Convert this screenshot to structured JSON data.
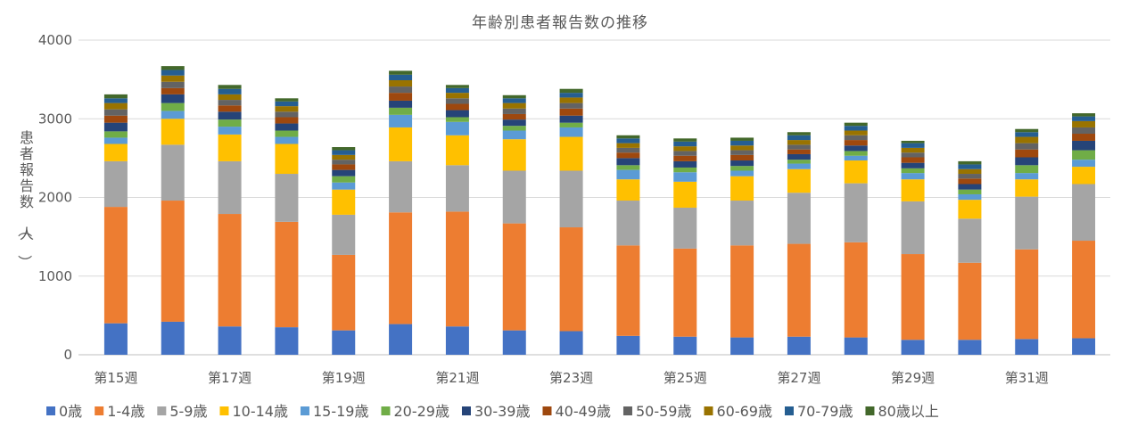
{
  "chart_data": {
    "type": "bar",
    "stacked": true,
    "title": "年齢別患者報告数の推移",
    "ylabel": "患者報告数（人）",
    "ylim": [
      0,
      4000
    ],
    "yticks": [
      0,
      1000,
      2000,
      3000,
      4000
    ],
    "grid": true,
    "legend_position": "bottom",
    "categories": [
      "第15週",
      "第16週",
      "第17週",
      "第18週",
      "第19週",
      "第20週",
      "第21週",
      "第22週",
      "第23週",
      "第24週",
      "第25週",
      "第26週",
      "第27週",
      "第28週",
      "第29週",
      "第30週",
      "第31週",
      "第32週"
    ],
    "category_labels": [
      "第15週",
      "",
      "第17週",
      "",
      "第19週",
      "",
      "第21週",
      "",
      "第23週",
      "",
      "第25週",
      "",
      "第27週",
      "",
      "第29週",
      "",
      "第31週",
      ""
    ],
    "series": [
      {
        "name": "0歳",
        "color": "#4472C4",
        "values": [
          400,
          420,
          360,
          350,
          310,
          390,
          360,
          310,
          300,
          240,
          230,
          220,
          230,
          220,
          190,
          190,
          200,
          210
        ]
      },
      {
        "name": "1-4歳",
        "color": "#ED7D31",
        "values": [
          1480,
          1540,
          1430,
          1340,
          960,
          1420,
          1460,
          1360,
          1320,
          1150,
          1120,
          1170,
          1180,
          1210,
          1090,
          980,
          1140,
          1240
        ]
      },
      {
        "name": "5-9歳",
        "color": "#A5A5A5",
        "values": [
          580,
          710,
          670,
          610,
          510,
          650,
          590,
          670,
          720,
          570,
          520,
          570,
          650,
          750,
          670,
          560,
          670,
          720
        ]
      },
      {
        "name": "10-14歳",
        "color": "#FFC000",
        "values": [
          220,
          330,
          340,
          380,
          320,
          430,
          380,
          400,
          430,
          270,
          330,
          310,
          300,
          290,
          280,
          240,
          220,
          220
        ]
      },
      {
        "name": "15-19歳",
        "color": "#5B9BD5",
        "values": [
          80,
          100,
          100,
          90,
          90,
          160,
          170,
          110,
          120,
          120,
          120,
          70,
          70,
          60,
          80,
          70,
          80,
          90
        ]
      },
      {
        "name": "20-29歳",
        "color": "#70AD47",
        "values": [
          80,
          100,
          90,
          80,
          80,
          90,
          60,
          60,
          60,
          60,
          60,
          60,
          50,
          60,
          60,
          60,
          100,
          120
        ]
      },
      {
        "name": "30-39歳",
        "color": "#264478",
        "values": [
          110,
          110,
          100,
          90,
          80,
          90,
          90,
          80,
          90,
          90,
          80,
          70,
          70,
          70,
          70,
          70,
          100,
          120
        ]
      },
      {
        "name": "40-49歳",
        "color": "#9E480E",
        "values": [
          90,
          80,
          80,
          80,
          70,
          100,
          80,
          70,
          90,
          70,
          70,
          70,
          60,
          70,
          70,
          70,
          100,
          90
        ]
      },
      {
        "name": "50-59歳",
        "color": "#636363",
        "values": [
          80,
          80,
          70,
          70,
          60,
          80,
          70,
          70,
          70,
          60,
          60,
          60,
          60,
          60,
          60,
          60,
          80,
          80
        ]
      },
      {
        "name": "60-69歳",
        "color": "#997300",
        "values": [
          80,
          80,
          70,
          70,
          60,
          80,
          70,
          70,
          70,
          60,
          60,
          60,
          60,
          60,
          60,
          60,
          80,
          80
        ]
      },
      {
        "name": "70-79歳",
        "color": "#255E91",
        "values": [
          60,
          70,
          70,
          60,
          60,
          70,
          60,
          60,
          60,
          60,
          60,
          60,
          60,
          60,
          60,
          60,
          60,
          60
        ]
      },
      {
        "name": "80歳以上",
        "color": "#43682B",
        "values": [
          50,
          50,
          50,
          40,
          40,
          50,
          40,
          40,
          50,
          40,
          40,
          40,
          40,
          40,
          30,
          40,
          40,
          40
        ]
      }
    ]
  }
}
